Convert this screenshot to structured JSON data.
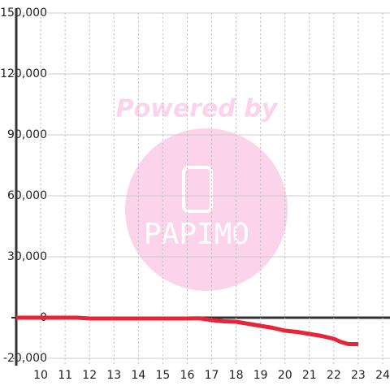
{
  "chart_data": {
    "type": "line",
    "watermark": {
      "title": "Powered by",
      "logo": "PAPIMO"
    },
    "x": [
      9,
      10,
      11,
      11.5,
      12,
      13,
      14,
      15,
      16,
      16.5,
      17,
      17.5,
      18,
      18.5,
      19,
      19.5,
      20,
      20.5,
      21,
      21.5,
      22,
      22.3,
      22.6,
      23
    ],
    "series": [
      {
        "color": "#e8233a",
        "values": [
          0,
          0,
          0,
          0,
          -400,
          -400,
          -400,
          -400,
          -400,
          -300,
          -1200,
          -1800,
          -2000,
          -3000,
          -4000,
          -5000,
          -6400,
          -7000,
          -8000,
          -9000,
          -10400,
          -12000,
          -13000,
          -13000
        ]
      }
    ],
    "xlim": [
      9,
      24.3
    ],
    "xticks": [
      10,
      11,
      12,
      13,
      14,
      15,
      16,
      17,
      18,
      19,
      20,
      21,
      22,
      23,
      24
    ],
    "ylim": [
      -23600,
      150000
    ],
    "yticks": [
      {
        "value": -20000,
        "label": "-20,000"
      },
      0,
      {
        "value": 30000,
        "label": "30,000"
      },
      {
        "value": 60000,
        "label": "60,000"
      },
      {
        "value": 90000,
        "label": "90,000"
      },
      {
        "value": 120000,
        "label": "120,000"
      },
      {
        "value": 150000,
        "label": "150,000"
      }
    ],
    "grid": true
  }
}
